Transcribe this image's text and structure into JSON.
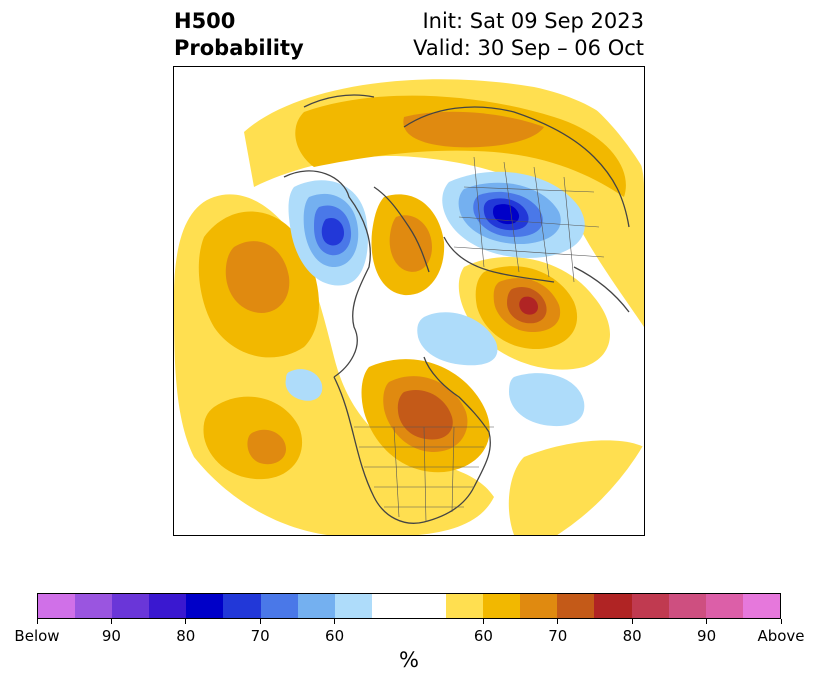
{
  "title": {
    "left_line1": "H500",
    "left_line2": "Probability",
    "right_line1": "Init: Sat 09 Sep 2023",
    "right_line2": "Valid: 30 Sep – 06 Oct"
  },
  "colorbar": {
    "unit": "%",
    "colors": [
      "#d070e8",
      "#9a55e0",
      "#6a36d8",
      "#3a18d0",
      "#0000c8",
      "#2238d8",
      "#4a78e8",
      "#74b0f0",
      "#aedcfa",
      "#ffffff",
      "#ffdf50",
      "#f2b800",
      "#e08a10",
      "#c45a18",
      "#b02424",
      "#c03a50",
      "#ce4f80",
      "#dc5fa8",
      "#e678dc"
    ],
    "tick_labels": [
      "Below",
      "90",
      "80",
      "70",
      "60",
      "60",
      "70",
      "80",
      "90",
      "Above"
    ]
  },
  "map": {
    "projection": "north polar stereographic",
    "anomaly_regions": [
      {
        "name": "alaska-chukchi-below",
        "category": "below",
        "level": 70
      },
      {
        "name": "siberia-below",
        "category": "below",
        "level": 80
      },
      {
        "name": "hudson-bay-below",
        "category": "below",
        "level": 60
      },
      {
        "name": "north-pacific-below",
        "category": "below",
        "level": 60
      },
      {
        "name": "north-atlantic-below",
        "category": "below",
        "level": 60
      },
      {
        "name": "canada-above",
        "category": "above",
        "level": 75
      },
      {
        "name": "scandinavia-russia-above",
        "category": "above",
        "level": 80
      },
      {
        "name": "east-asia-above",
        "category": "above",
        "level": 70
      },
      {
        "name": "north-pacific-above",
        "category": "above",
        "level": 70
      },
      {
        "name": "arctic-above",
        "category": "above",
        "level": 65
      }
    ]
  }
}
